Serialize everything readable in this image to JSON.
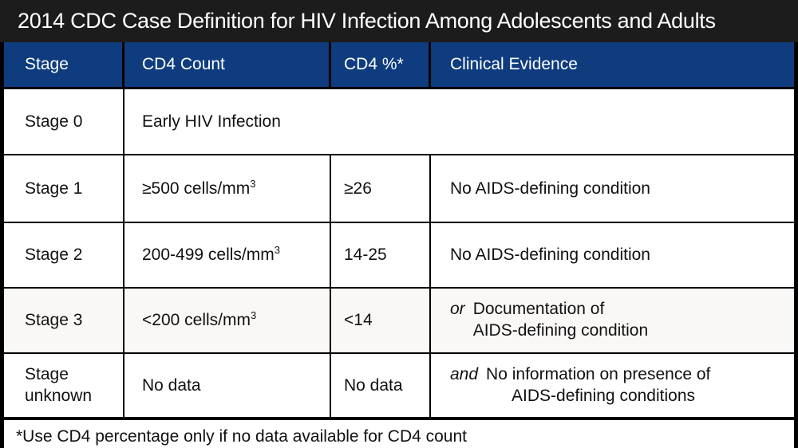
{
  "title": "2014 CDC Case Definition for HIV Infection Among Adolescents and Adults",
  "colors": {
    "title_bar_bg": "#1c1c1c",
    "header_bg": "#0e3c7e",
    "header_text": "#ffffff",
    "body_text": "#111111",
    "border": "#000000"
  },
  "header": {
    "stage": "Stage",
    "cd4_count": "CD4 Count",
    "cd4_pct": "CD4 %*",
    "clinical": "Clinical Evidence"
  },
  "rows": [
    {
      "stage": "Stage 0",
      "definition": "Early HIV Infection"
    },
    {
      "stage": "Stage 1",
      "cd4_count": "≥500 cells/mm",
      "cd4_sup": "3",
      "cd4_pct": "≥26",
      "clinical": "No AIDS-defining condition"
    },
    {
      "stage": "Stage 2",
      "cd4_count": "200-499 cells/mm",
      "cd4_sup": "3",
      "cd4_pct": "14-25",
      "clinical": "No AIDS-defining condition"
    },
    {
      "stage": "Stage 3",
      "cd4_count": "<200 cells/mm",
      "cd4_sup": "3",
      "cd4_pct": "<14",
      "conj": "or",
      "clinical_line1": "Documentation of",
      "clinical_line2": "AIDS-defining condition"
    },
    {
      "stage": "Stage unknown",
      "cd4_count": "No data",
      "cd4_pct": "No data",
      "conj": "and",
      "clinical_line1": "No information on presence of",
      "clinical_line2": "AIDS-defining conditions"
    }
  ],
  "footnote": "*Use CD4 percentage only if no data available for CD4 count"
}
